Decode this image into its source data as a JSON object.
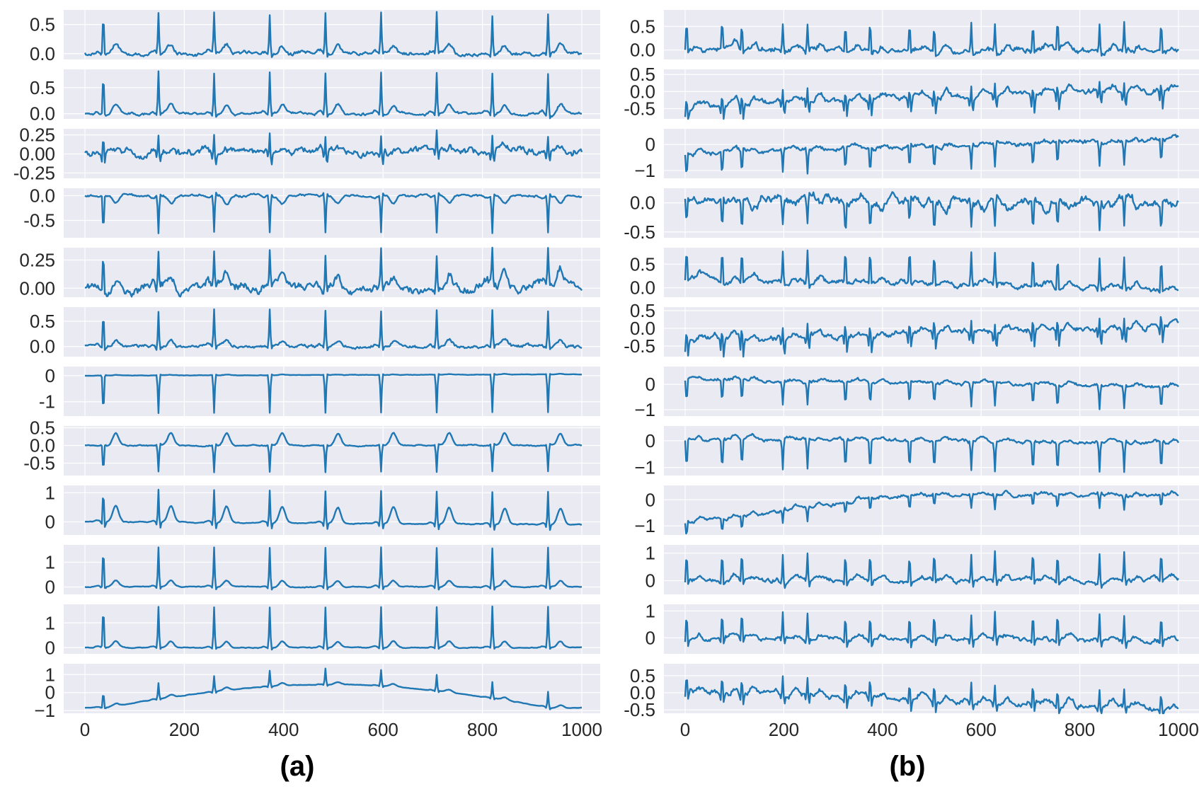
{
  "figure": {
    "background": "#ffffff",
    "plot_bg": "#eaeaf2",
    "grid_color": "#ffffff",
    "line_color": "#1f77b4",
    "text_color": "#262626"
  },
  "chart_data": [
    {
      "type": "line",
      "panel_label": "(a)",
      "x_range": [
        0,
        1000
      ],
      "xticks": [
        "0",
        "200",
        "400",
        "600",
        "800",
        "1000"
      ],
      "xtick_values": [
        0,
        200,
        400,
        600,
        800,
        1000
      ],
      "beats": [
        37,
        148,
        260,
        372,
        484,
        596,
        708,
        820,
        932
      ],
      "leads": [
        {
          "yticks": [
            "0.5",
            "0.0"
          ],
          "ytick_values": [
            0.5,
            0.0
          ],
          "ylim": [
            -0.1,
            0.75
          ],
          "r_amp": 0.7,
          "s_amp": -0.05,
          "t_amp": 0.15,
          "p_amp": 0.05,
          "drift": [
            0,
            0
          ],
          "noise": 0.02
        },
        {
          "yticks": [
            "0.5",
            "0.0"
          ],
          "ytick_values": [
            0.5,
            0.0
          ],
          "ylim": [
            -0.1,
            0.85
          ],
          "r_amp": 0.8,
          "s_amp": -0.06,
          "t_amp": 0.18,
          "p_amp": 0.05,
          "drift": [
            0,
            0
          ],
          "noise": 0.015
        },
        {
          "yticks": [
            "0.25",
            "0.00",
            "-0.25"
          ],
          "ytick_values": [
            0.25,
            0.0,
            -0.25
          ],
          "ylim": [
            -0.32,
            0.33
          ],
          "r_amp": 0.25,
          "s_amp": -0.18,
          "t_amp": 0.05,
          "p_amp": 0.03,
          "drift": [
            0,
            0.05
          ],
          "noise": 0.03
        },
        {
          "yticks": [
            "0.0",
            "-0.5"
          ],
          "ytick_values": [
            0.0,
            -0.5
          ],
          "ylim": [
            -0.85,
            0.15
          ],
          "r_amp": -0.75,
          "s_amp": 0.05,
          "t_amp": -0.15,
          "p_amp": -0.03,
          "drift": [
            0,
            0
          ],
          "noise": 0.015
        },
        {
          "yticks": [
            "0.25",
            "0.00"
          ],
          "ytick_values": [
            0.25,
            0.0
          ],
          "ylim": [
            -0.08,
            0.36
          ],
          "r_amp": 0.33,
          "s_amp": -0.03,
          "t_amp": 0.12,
          "p_amp": 0.04,
          "drift": [
            0,
            0
          ],
          "noise": 0.025
        },
        {
          "yticks": [
            "0.5",
            "0.0"
          ],
          "ytick_values": [
            0.5,
            0.0
          ],
          "ylim": [
            -0.2,
            0.78
          ],
          "r_amp": 0.72,
          "s_amp": -0.08,
          "t_amp": 0.12,
          "p_amp": 0.04,
          "drift": [
            0,
            0
          ],
          "noise": 0.02
        },
        {
          "yticks": [
            "0",
            "-1"
          ],
          "ytick_values": [
            0,
            -1
          ],
          "ylim": [
            -1.55,
            0.35
          ],
          "r_amp": -1.45,
          "s_amp": 0.05,
          "t_amp": 0.02,
          "p_amp": 0.0,
          "drift": [
            0,
            0.05
          ],
          "noise": 0.005
        },
        {
          "yticks": [
            "0.5",
            "0.0",
            "-0.5"
          ],
          "ytick_values": [
            0.5,
            0.0,
            -0.5
          ],
          "ylim": [
            -0.85,
            0.55
          ],
          "r_amp": -0.75,
          "s_amp": 0.05,
          "t_amp": 0.35,
          "p_amp": 0.0,
          "drift": [
            0,
            0
          ],
          "noise": 0.01
        },
        {
          "yticks": [
            "1",
            "0"
          ],
          "ytick_values": [
            1,
            0
          ],
          "ylim": [
            -0.45,
            1.25
          ],
          "r_amp": 1.15,
          "s_amp": -0.25,
          "t_amp": 0.55,
          "p_amp": 0.05,
          "drift": [
            0,
            -0.1
          ],
          "noise": 0.01
        },
        {
          "yticks": [
            "1",
            "0"
          ],
          "ytick_values": [
            1,
            0
          ],
          "ylim": [
            -0.3,
            1.7
          ],
          "r_amp": 1.6,
          "s_amp": -0.15,
          "t_amp": 0.25,
          "p_amp": 0.05,
          "drift": [
            0,
            0
          ],
          "noise": 0.01
        },
        {
          "yticks": [
            "1",
            "0"
          ],
          "ytick_values": [
            1,
            0
          ],
          "ylim": [
            -0.25,
            1.75
          ],
          "r_amp": 1.65,
          "s_amp": -0.1,
          "t_amp": 0.25,
          "p_amp": 0.05,
          "drift": [
            0,
            0
          ],
          "noise": 0.01
        },
        {
          "yticks": [
            "1",
            "0",
            "−1"
          ],
          "ytick_values": [
            1,
            0,
            -1
          ],
          "ylim": [
            -1.15,
            1.6
          ],
          "r_amp": 0.9,
          "s_amp": -0.1,
          "t_amp": 0.15,
          "p_amp": 0.03,
          "drift": [
            -0.8,
            -0.8
          ],
          "wander": true,
          "noise": 0.01
        }
      ]
    },
    {
      "type": "line",
      "panel_label": "(b)",
      "x_range": [
        0,
        1000
      ],
      "xticks": [
        "0",
        "200",
        "400",
        "600",
        "800",
        "1000"
      ],
      "xtick_values": [
        0,
        200,
        400,
        600,
        800,
        1000
      ],
      "beats": [
        3,
        75,
        115,
        198,
        248,
        325,
        375,
        455,
        505,
        580,
        628,
        705,
        755,
        840,
        890,
        965
      ],
      "leads": [
        {
          "yticks": [
            "0.5",
            "0.0"
          ],
          "ytick_values": [
            0.5,
            0.0
          ],
          "ylim": [
            -0.2,
            0.85
          ],
          "r_amp": 0.6,
          "s_amp": -0.1,
          "t_amp": 0.1,
          "p_amp": 0.03,
          "drift": [
            0.05,
            -0.05
          ],
          "noise": 0.04
        },
        {
          "yticks": [
            "0.5",
            "0.0",
            "-0.5"
          ],
          "ytick_values": [
            0.5,
            0.0,
            -0.5
          ],
          "ylim": [
            -0.8,
            0.65
          ],
          "r_amp": 0.35,
          "s_amp": -0.5,
          "t_amp": 0.15,
          "p_amp": 0.03,
          "drift": [
            -0.4,
            0.05
          ],
          "noise": 0.05
        },
        {
          "yticks": [
            "0",
            "−1"
          ],
          "ytick_values": [
            0,
            -1
          ],
          "ylim": [
            -1.3,
            0.6
          ],
          "r_amp": -0.9,
          "s_amp": 0.1,
          "t_amp": 0.1,
          "p_amp": 0.02,
          "drift": [
            -0.35,
            0.2
          ],
          "noise": 0.05
        },
        {
          "yticks": [
            "0.0",
            "-0.5"
          ],
          "ytick_values": [
            0.0,
            -0.5
          ],
          "ylim": [
            -0.6,
            0.25
          ],
          "r_amp": -0.45,
          "s_amp": 0.05,
          "t_amp": -0.1,
          "p_amp": 0.02,
          "drift": [
            0.1,
            0.0
          ],
          "noise": 0.05
        },
        {
          "yticks": [
            "0.5",
            "0.0"
          ],
          "ytick_values": [
            0.5,
            0.0
          ],
          "ylim": [
            -0.2,
            0.85
          ],
          "r_amp": 0.7,
          "s_amp": -0.08,
          "t_amp": 0.1,
          "p_amp": 0.03,
          "drift": [
            0.2,
            -0.05
          ],
          "noise": 0.035
        },
        {
          "yticks": [
            "0.5",
            "0.0",
            "-0.5"
          ],
          "ytick_values": [
            0.5,
            0.0,
            -0.5
          ],
          "ylim": [
            -0.8,
            0.6
          ],
          "r_amp": 0.35,
          "s_amp": -0.5,
          "t_amp": 0.15,
          "p_amp": 0.03,
          "drift": [
            -0.35,
            0.05
          ],
          "noise": 0.05
        },
        {
          "yticks": [
            "0",
            "−1"
          ],
          "ytick_values": [
            0,
            -1
          ],
          "ylim": [
            -1.25,
            0.7
          ],
          "r_amp": -0.9,
          "s_amp": 0.05,
          "t_amp": 0.1,
          "p_amp": 0.02,
          "drift": [
            0.2,
            -0.1
          ],
          "noise": 0.04
        },
        {
          "yticks": [
            "0",
            "−1"
          ],
          "ytick_values": [
            0,
            -1
          ],
          "ylim": [
            -1.3,
            0.55
          ],
          "r_amp": -1.1,
          "s_amp": 0.05,
          "t_amp": 0.1,
          "p_amp": 0.02,
          "drift": [
            0.1,
            -0.1
          ],
          "noise": 0.04
        },
        {
          "yticks": [
            "0",
            "−1"
          ],
          "ytick_values": [
            0,
            -1
          ],
          "ylim": [
            -1.35,
            0.55
          ],
          "r_amp": -0.5,
          "s_amp": 0.1,
          "t_amp": 0.1,
          "p_amp": 0.02,
          "drift": [
            -0.85,
            0.1
          ],
          "wander_up": true,
          "noise": 0.04
        },
        {
          "yticks": [
            "1",
            "0"
          ],
          "ytick_values": [
            1,
            0
          ],
          "ylim": [
            -0.5,
            1.3
          ],
          "r_amp": 1.05,
          "s_amp": -0.2,
          "t_amp": 0.15,
          "p_amp": 0.03,
          "drift": [
            0,
            0
          ],
          "noise": 0.05
        },
        {
          "yticks": [
            "1",
            "0"
          ],
          "ytick_values": [
            1,
            0
          ],
          "ylim": [
            -0.6,
            1.25
          ],
          "r_amp": 1.0,
          "s_amp": -0.3,
          "t_amp": 0.15,
          "p_amp": 0.03,
          "drift": [
            0,
            -0.1
          ],
          "noise": 0.05
        },
        {
          "yticks": [
            "0.5",
            "0.0",
            "-0.5"
          ],
          "ytick_values": [
            0.5,
            0.0,
            -0.5
          ],
          "ylim": [
            -0.6,
            0.85
          ],
          "r_amp": 0.55,
          "s_amp": -0.3,
          "t_amp": 0.15,
          "p_amp": 0.03,
          "drift": [
            0.05,
            -0.45
          ],
          "noise": 0.05
        }
      ]
    }
  ]
}
